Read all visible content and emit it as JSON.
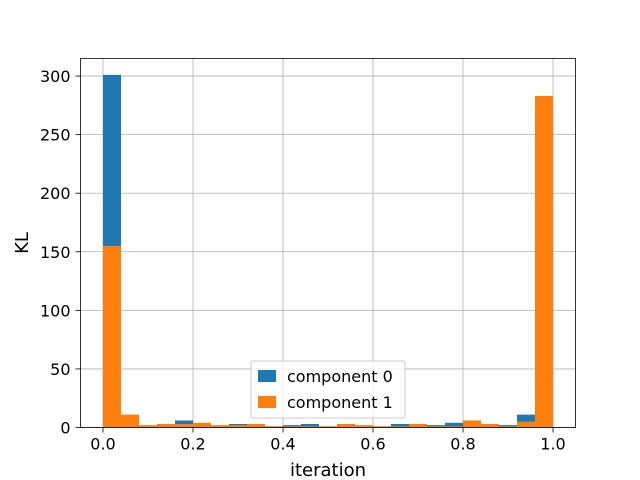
{
  "chart_data": {
    "type": "bar",
    "title": "",
    "xlabel": "iteration",
    "ylabel": "KL",
    "xlim": [
      -0.05,
      1.05
    ],
    "ylim": [
      0,
      315
    ],
    "grid": true,
    "legend_position": "bottom-center",
    "bin_width": 0.04,
    "x_ticks": [
      0.0,
      0.2,
      0.4,
      0.6,
      0.8,
      1.0
    ],
    "x_tick_labels": [
      "0.0",
      "0.2",
      "0.4",
      "0.6",
      "0.8",
      "1.0"
    ],
    "y_ticks": [
      0,
      50,
      100,
      150,
      200,
      250,
      300
    ],
    "y_tick_labels": [
      "0",
      "50",
      "100",
      "150",
      "200",
      "250",
      "300"
    ],
    "bin_starts": [
      0.0,
      0.04,
      0.08,
      0.12,
      0.16,
      0.2,
      0.24,
      0.28,
      0.32,
      0.36,
      0.4,
      0.44,
      0.48,
      0.52,
      0.56,
      0.6,
      0.64,
      0.68,
      0.72,
      0.76,
      0.8,
      0.84,
      0.88,
      0.92,
      0.96
    ],
    "series": [
      {
        "name": "component 0",
        "color": "#1f77b4",
        "values": [
          301,
          1,
          1,
          1,
          6,
          2,
          1,
          3,
          1,
          1,
          2,
          3,
          1,
          1,
          1,
          1,
          3,
          1,
          2,
          4,
          1,
          1,
          2,
          11,
          3
        ]
      },
      {
        "name": "component 1",
        "color": "#ff7f0e",
        "values": [
          155,
          11,
          2,
          3,
          3,
          4,
          2,
          2,
          3,
          1,
          1,
          1,
          1,
          3,
          2,
          1,
          1,
          3,
          1,
          1,
          6,
          3,
          1,
          5,
          283
        ]
      }
    ]
  }
}
